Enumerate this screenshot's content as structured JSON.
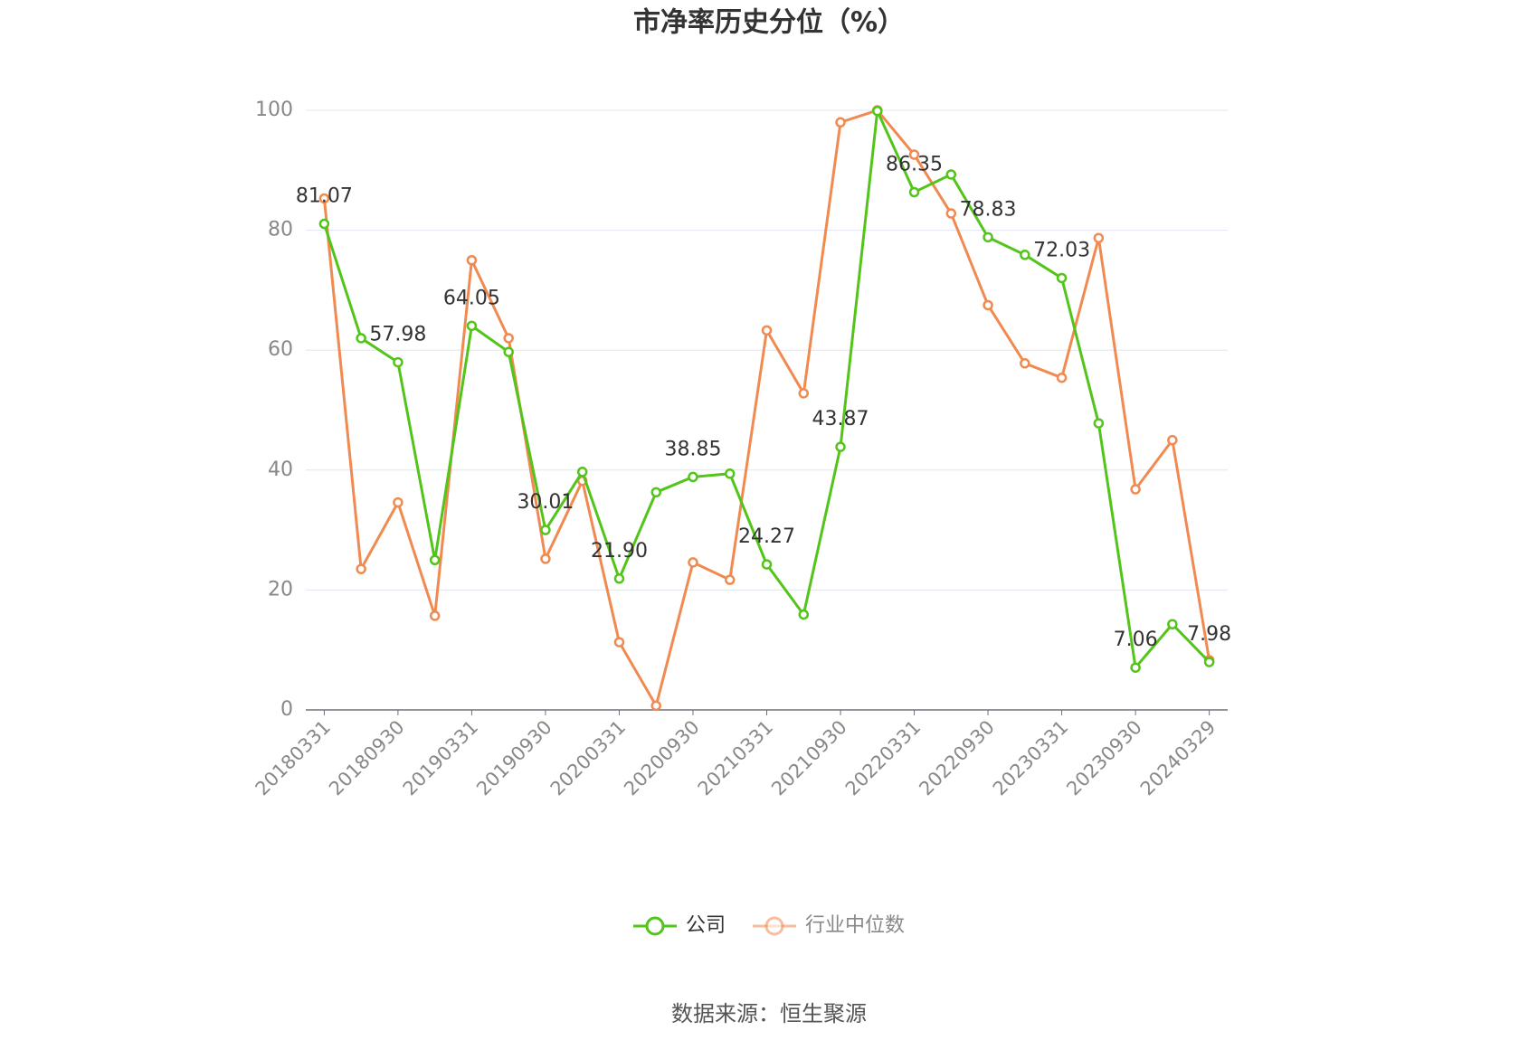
{
  "chart_data": {
    "type": "line",
    "title": "市净率历史分位（%）",
    "categories": [
      "20180331",
      null,
      "20180930",
      null,
      "20190331",
      null,
      "20190930",
      null,
      "20200331",
      null,
      "20200930",
      null,
      "20210331",
      null,
      "20210930",
      null,
      "20220331",
      null,
      "20220930",
      null,
      "20230331",
      null,
      "20230930",
      null,
      "20240329"
    ],
    "series": [
      {
        "name": "公司",
        "color": "#52c41a",
        "values": [
          81.07,
          62,
          57.98,
          25,
          64.05,
          59.7,
          30.01,
          39.7,
          21.9,
          36.3,
          38.85,
          39.4,
          24.27,
          15.9,
          43.87,
          99.9,
          86.35,
          89.3,
          78.83,
          75.9,
          72.03,
          47.8,
          7.06,
          14.3,
          7.98
        ],
        "value_labels": [
          "81.07",
          null,
          "57.98",
          null,
          "64.05",
          null,
          "30.01",
          null,
          "21.90",
          null,
          "38.85",
          null,
          "24.27",
          null,
          "43.87",
          null,
          "86.35",
          null,
          "78.83",
          null,
          "72.03",
          null,
          "7.06",
          null,
          "7.98"
        ]
      },
      {
        "name": "行业中位数",
        "color": "#f08a50",
        "values": [
          85.3,
          23.5,
          34.6,
          15.7,
          75,
          62,
          25.2,
          38.2,
          11.3,
          0.7,
          24.6,
          21.7,
          63.3,
          52.8,
          98,
          100,
          92.6,
          82.8,
          67.5,
          57.8,
          55.4,
          78.7,
          36.8,
          45,
          8.3
        ]
      }
    ],
    "ylim": [
      0,
      100
    ],
    "yticks": [
      0,
      20,
      40,
      60,
      80,
      100
    ],
    "grid": true,
    "source": "数据来源：恒生聚源"
  }
}
